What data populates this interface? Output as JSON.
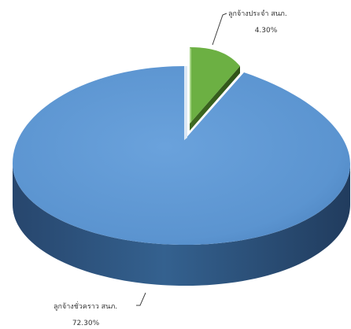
{
  "chart_data": {
    "type": "pie",
    "style": "3d",
    "title": "",
    "slices": [
      {
        "label": "ลูกจ้างประจำ สนภ.",
        "value_label": "4.30%",
        "value": 4.3,
        "color": "#70AD47",
        "exploded": true
      },
      {
        "label": "ลูกจ้างชั่วคราว สนภ.",
        "value_label": "72.30%",
        "value": 72.3,
        "color": "#5B9BD5",
        "exploded": false
      }
    ]
  }
}
